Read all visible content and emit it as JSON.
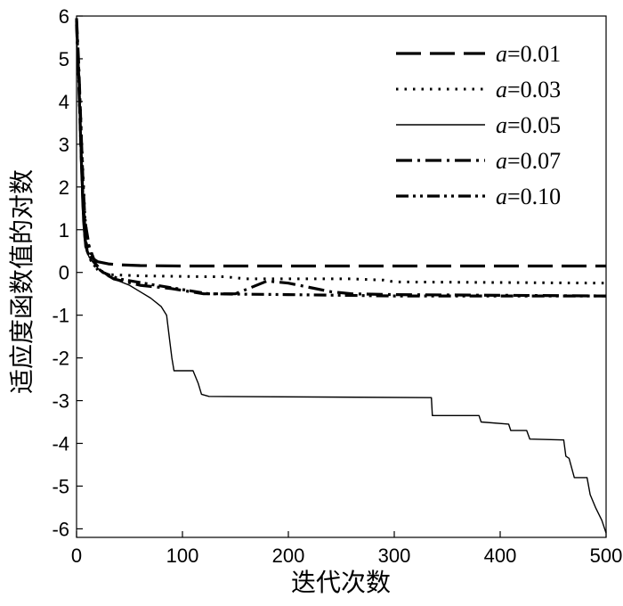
{
  "chart_data": {
    "type": "line",
    "title": "",
    "xlabel": "迭代次数",
    "ylabel": "适应度函数值的对数",
    "xlim": [
      0,
      500
    ],
    "ylim": [
      -6.2,
      6
    ],
    "xticks": [
      0,
      100,
      200,
      300,
      400,
      500
    ],
    "yticks": [
      6,
      5,
      4,
      3,
      2,
      1,
      0,
      -1,
      -2,
      -3,
      -4,
      -5,
      -6
    ],
    "grid": false,
    "legend_position": "top-right",
    "series": [
      {
        "name": "a=0.01",
        "legend_var": "a",
        "legend_value": "=0.01",
        "dash": "long-dash",
        "width": 3.2,
        "points": [
          [
            0,
            5.9
          ],
          [
            2,
            4.6
          ],
          [
            4,
            3.0
          ],
          [
            6,
            1.6
          ],
          [
            8,
            0.8
          ],
          [
            10,
            0.5
          ],
          [
            14,
            0.35
          ],
          [
            20,
            0.25
          ],
          [
            30,
            0.2
          ],
          [
            40,
            0.18
          ],
          [
            60,
            0.16
          ],
          [
            100,
            0.15
          ],
          [
            300,
            0.15
          ],
          [
            500,
            0.15
          ]
        ]
      },
      {
        "name": "a=0.03",
        "legend_var": "a",
        "legend_value": "=0.03",
        "dash": "dotted",
        "width": 3,
        "points": [
          [
            0,
            5.8
          ],
          [
            2,
            4.8
          ],
          [
            4,
            3.6
          ],
          [
            6,
            2.4
          ],
          [
            8,
            1.3
          ],
          [
            10,
            0.8
          ],
          [
            15,
            0.3
          ],
          [
            20,
            0.05
          ],
          [
            30,
            -0.05
          ],
          [
            60,
            -0.08
          ],
          [
            120,
            -0.1
          ],
          [
            140,
            -0.1
          ],
          [
            160,
            -0.15
          ],
          [
            260,
            -0.15
          ],
          [
            290,
            -0.18
          ],
          [
            300,
            -0.22
          ],
          [
            500,
            -0.25
          ]
        ]
      },
      {
        "name": "a=0.05",
        "legend_var": "a",
        "legend_value": "=0.05",
        "dash": "solid",
        "width": 1.4,
        "points": [
          [
            0,
            5.7
          ],
          [
            2,
            4.2
          ],
          [
            4,
            2.5
          ],
          [
            6,
            1.2
          ],
          [
            8,
            0.6
          ],
          [
            12,
            0.35
          ],
          [
            20,
            0.1
          ],
          [
            30,
            -0.1
          ],
          [
            40,
            -0.2
          ],
          [
            50,
            -0.3
          ],
          [
            60,
            -0.45
          ],
          [
            70,
            -0.6
          ],
          [
            80,
            -0.8
          ],
          [
            85,
            -1.0
          ],
          [
            88,
            -1.6
          ],
          [
            90,
            -2.0
          ],
          [
            92,
            -2.3
          ],
          [
            110,
            -2.3
          ],
          [
            115,
            -2.6
          ],
          [
            118,
            -2.85
          ],
          [
            125,
            -2.9
          ],
          [
            335,
            -2.93
          ],
          [
            336,
            -3.35
          ],
          [
            380,
            -3.35
          ],
          [
            382,
            -3.5
          ],
          [
            408,
            -3.55
          ],
          [
            410,
            -3.7
          ],
          [
            425,
            -3.7
          ],
          [
            428,
            -3.9
          ],
          [
            460,
            -3.92
          ],
          [
            462,
            -4.3
          ],
          [
            465,
            -4.35
          ],
          [
            470,
            -4.8
          ],
          [
            482,
            -4.8
          ],
          [
            485,
            -5.2
          ],
          [
            490,
            -5.5
          ],
          [
            496,
            -5.8
          ],
          [
            500,
            -6.1
          ]
        ]
      },
      {
        "name": "a=0.07",
        "legend_var": "a",
        "legend_value": "=0.07",
        "dash": "dash-dot",
        "width": 3.2,
        "points": [
          [
            0,
            5.95
          ],
          [
            2,
            4.9
          ],
          [
            4,
            3.5
          ],
          [
            6,
            2.2
          ],
          [
            8,
            1.2
          ],
          [
            12,
            0.6
          ],
          [
            18,
            0.2
          ],
          [
            25,
            0.0
          ],
          [
            35,
            -0.15
          ],
          [
            60,
            -0.3
          ],
          [
            90,
            -0.38
          ],
          [
            120,
            -0.5
          ],
          [
            150,
            -0.5
          ],
          [
            180,
            -0.2
          ],
          [
            200,
            -0.25
          ],
          [
            220,
            -0.35
          ],
          [
            240,
            -0.45
          ],
          [
            260,
            -0.5
          ],
          [
            300,
            -0.52
          ],
          [
            500,
            -0.55
          ]
        ]
      },
      {
        "name": "a=0.10",
        "legend_var": "a",
        "legend_value": "=0.10",
        "dash": "dash-dot-dot",
        "width": 3.2,
        "points": [
          [
            0,
            5.8
          ],
          [
            2,
            4.5
          ],
          [
            4,
            3.0
          ],
          [
            6,
            1.8
          ],
          [
            8,
            1.0
          ],
          [
            10,
            0.5
          ],
          [
            15,
            0.2
          ],
          [
            25,
            0.0
          ],
          [
            40,
            -0.15
          ],
          [
            70,
            -0.28
          ],
          [
            100,
            -0.4
          ],
          [
            125,
            -0.5
          ],
          [
            200,
            -0.52
          ],
          [
            300,
            -0.55
          ],
          [
            500,
            -0.55
          ]
        ]
      }
    ]
  }
}
